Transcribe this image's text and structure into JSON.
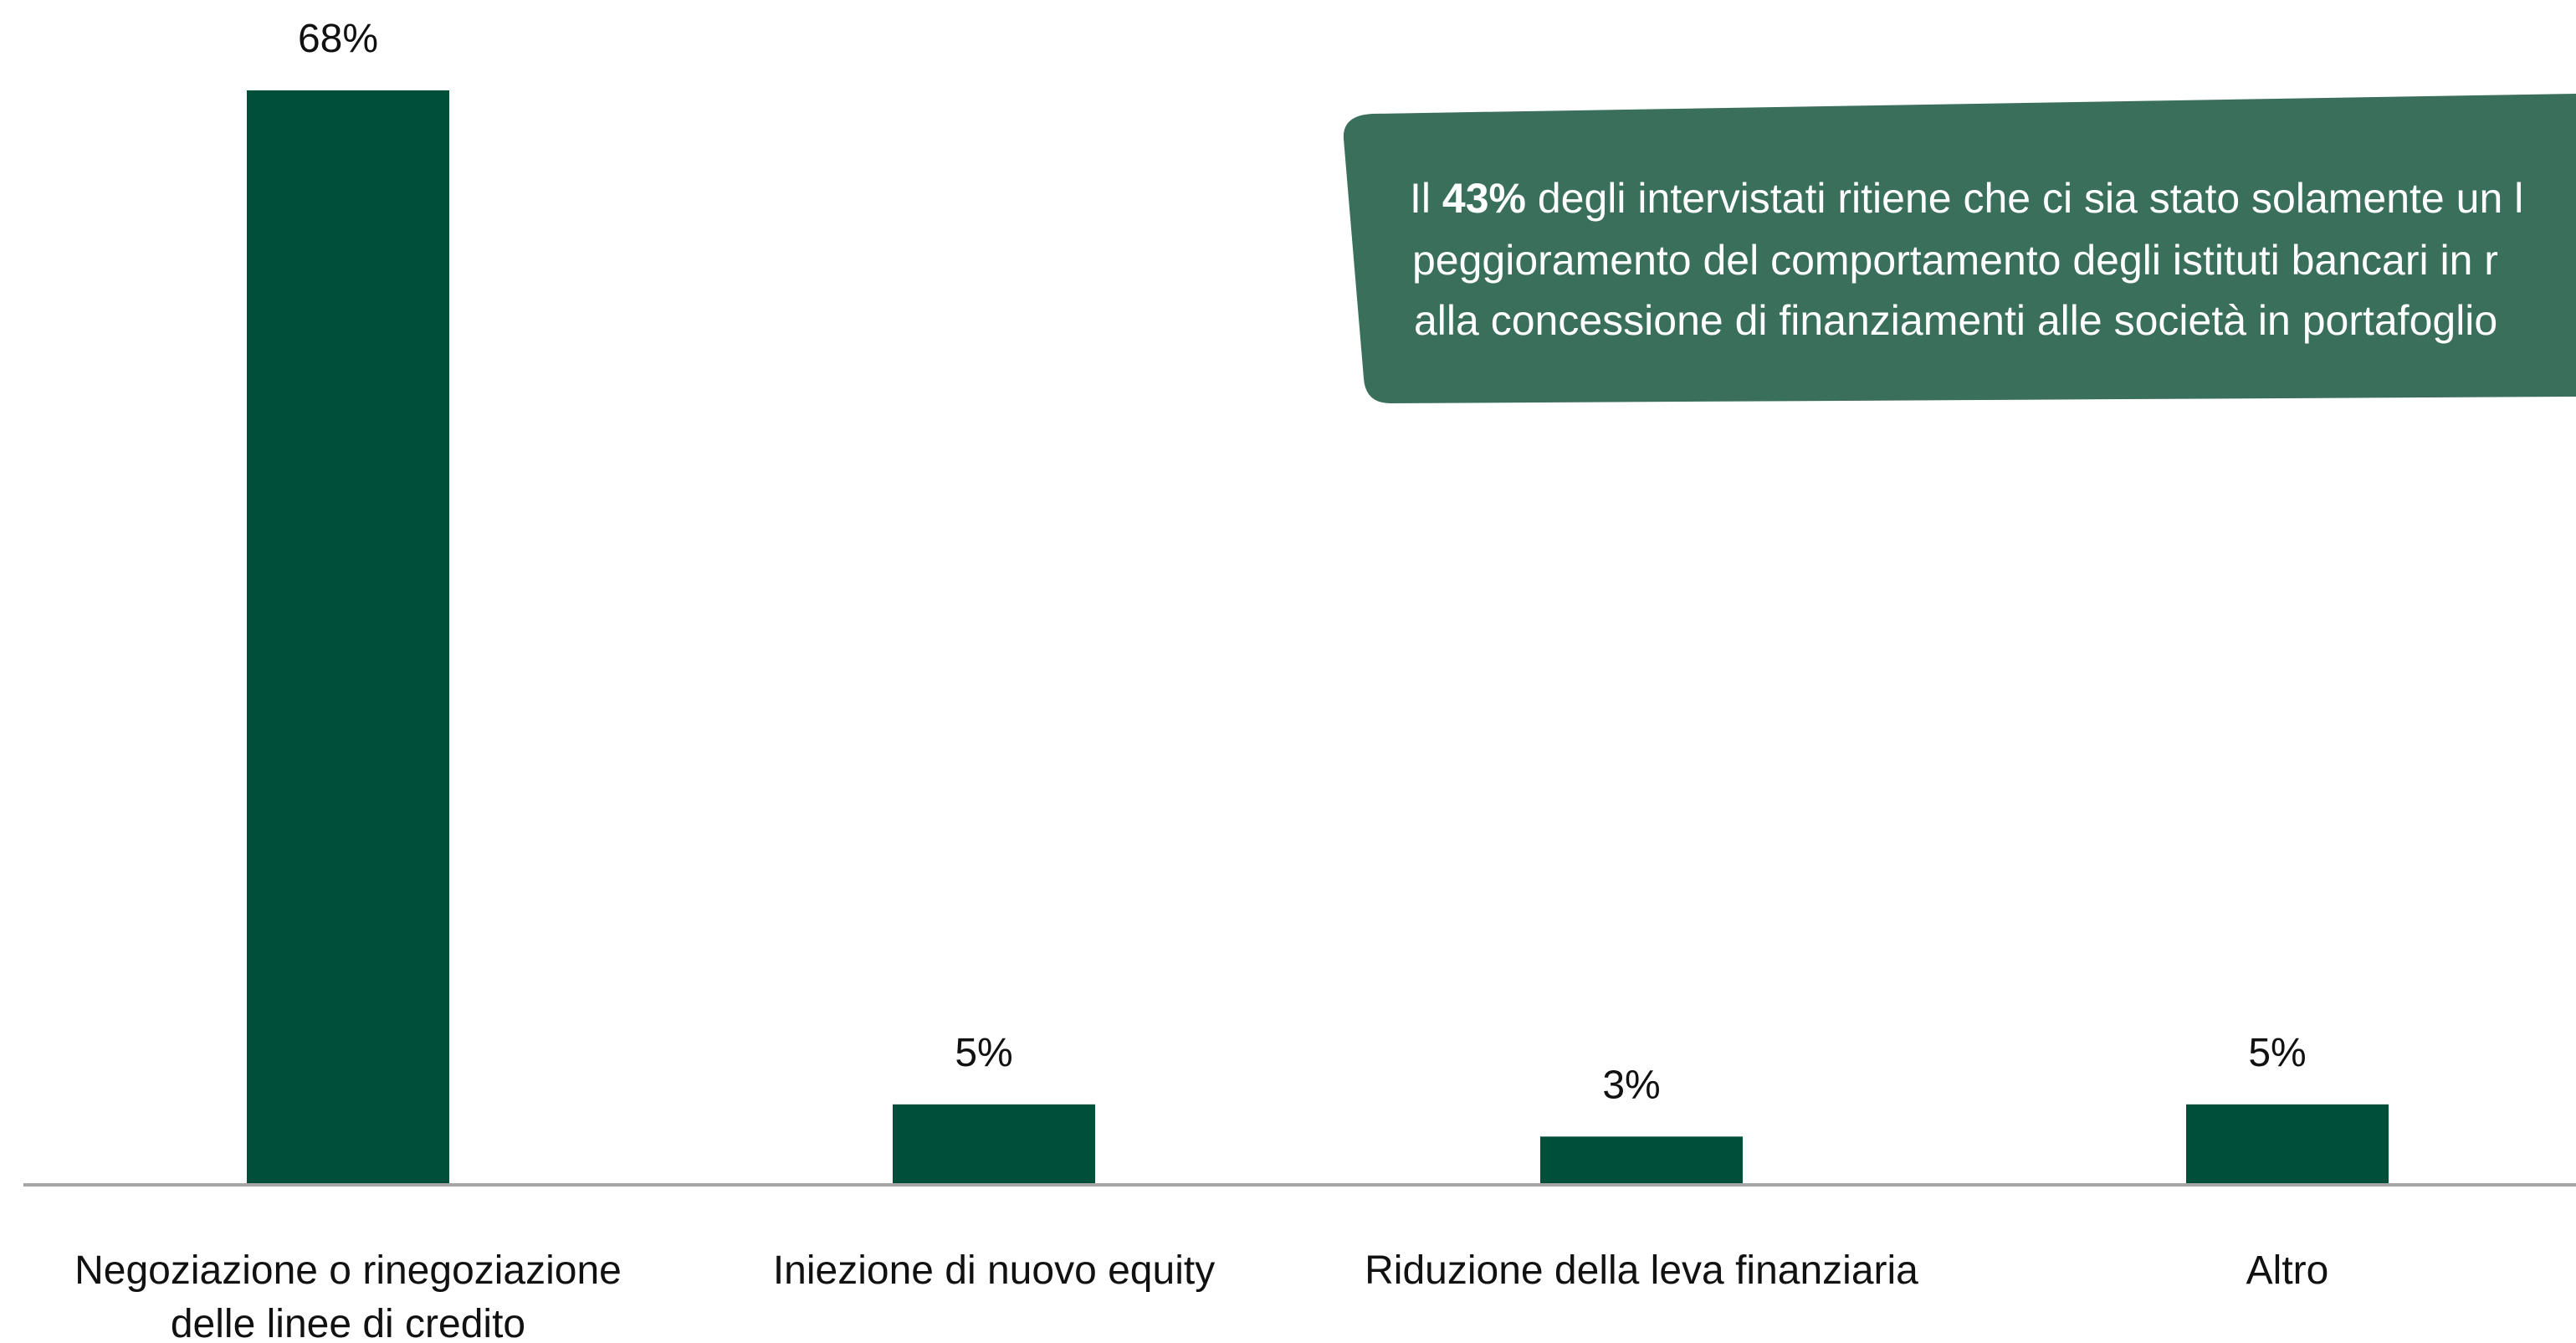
{
  "chart_data": {
    "type": "bar",
    "categories": [
      [
        "Negoziazione o rinegoziazione",
        "delle linee di credito"
      ],
      [
        "Iniezione di nuovo equity"
      ],
      [
        "Riduzione della leva finanziaria"
      ],
      [
        "Altro"
      ]
    ],
    "values": [
      68,
      5,
      3,
      5
    ],
    "value_labels": [
      "68%",
      "5%",
      "3%",
      "5%"
    ],
    "ylim": [
      0,
      68
    ],
    "grid": false,
    "title": "",
    "xlabel": "",
    "ylabel": "",
    "bar_color": "#004f3b",
    "axis_color": "#a6a6a6"
  },
  "callout": {
    "prefix": "Il ",
    "highlight": "43%",
    "line1_rest": " degli intervistati ritiene che ci sia stato solamente un l",
    "line2": "peggioramento del comportamento degli istituti bancari in r",
    "line3": "alla concessione di finanziamenti alle società in portafoglio",
    "background": "#3a6f5c"
  }
}
